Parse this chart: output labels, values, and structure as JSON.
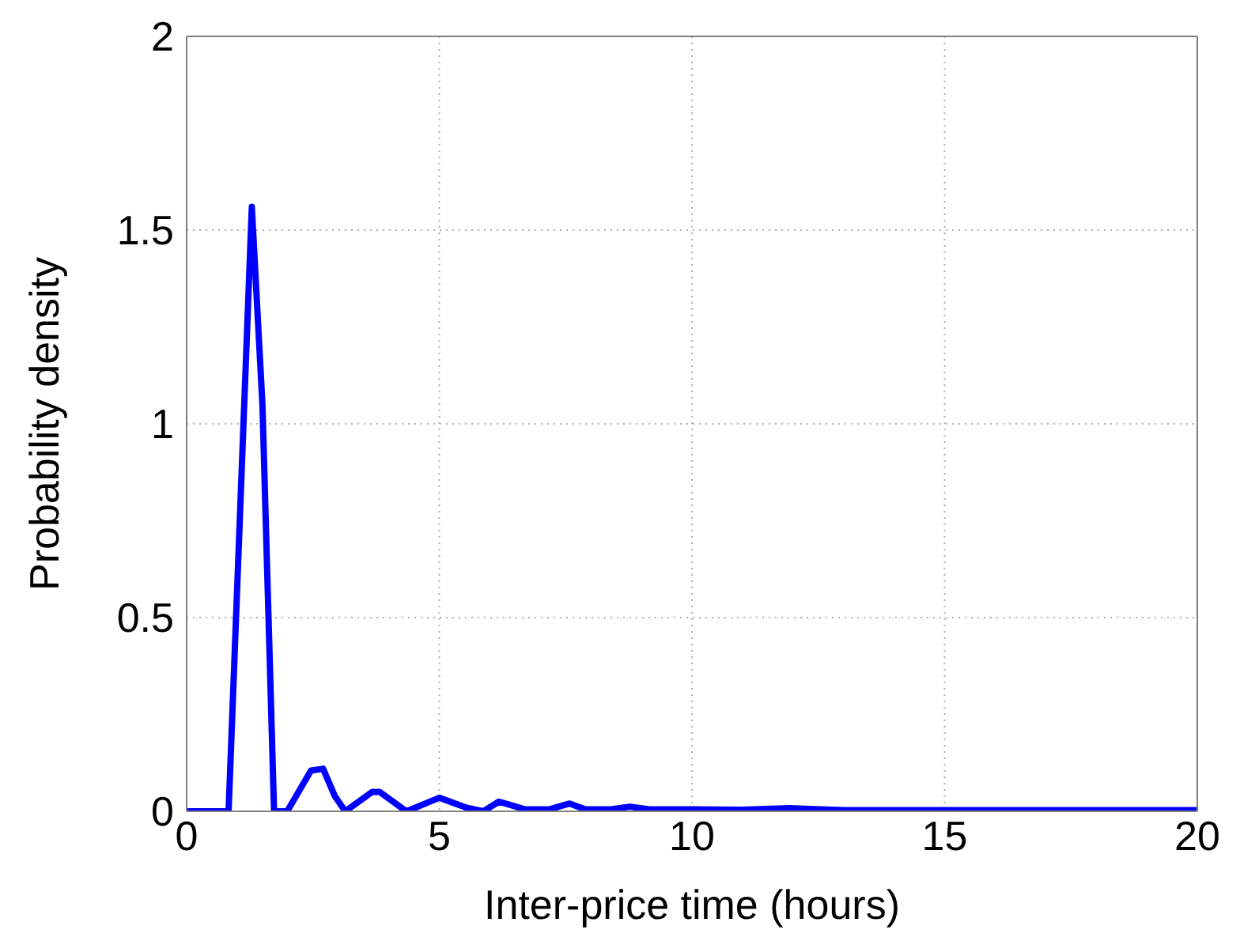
{
  "chart_data": {
    "type": "line",
    "xlabel": "Inter-price time (hours)",
    "ylabel": "Probability density",
    "series": [
      {
        "color": "#0000ff",
        "x": [
          0,
          0.83,
          1.29,
          1.5,
          1.73,
          1.99,
          2.46,
          2.7,
          2.93,
          3.14,
          3.67,
          3.82,
          4.35,
          5.0,
          5.52,
          5.87,
          6.18,
          6.44,
          6.7,
          7.17,
          7.58,
          7.89,
          8.4,
          8.77,
          9.15,
          10,
          11,
          11.93,
          13,
          15,
          17,
          20
        ],
        "values": [
          0,
          0,
          1.56,
          1.05,
          0,
          0,
          0.105,
          0.11,
          0.04,
          0,
          0.05,
          0.05,
          0,
          0.035,
          0.01,
          0,
          0.025,
          0.015,
          0.005,
          0.005,
          0.02,
          0.005,
          0.005,
          0.012,
          0.005,
          0.005,
          0.004,
          0.008,
          0.003,
          0.003,
          0.003,
          0.003
        ]
      }
    ],
    "xlim": [
      0,
      20
    ],
    "xticks": [
      0,
      5,
      10,
      15,
      20
    ],
    "ylim": [
      0,
      2
    ],
    "yticks": [
      0,
      0.5,
      1,
      1.5,
      2
    ],
    "grid": true,
    "marker": "none",
    "line_style": "solid"
  }
}
